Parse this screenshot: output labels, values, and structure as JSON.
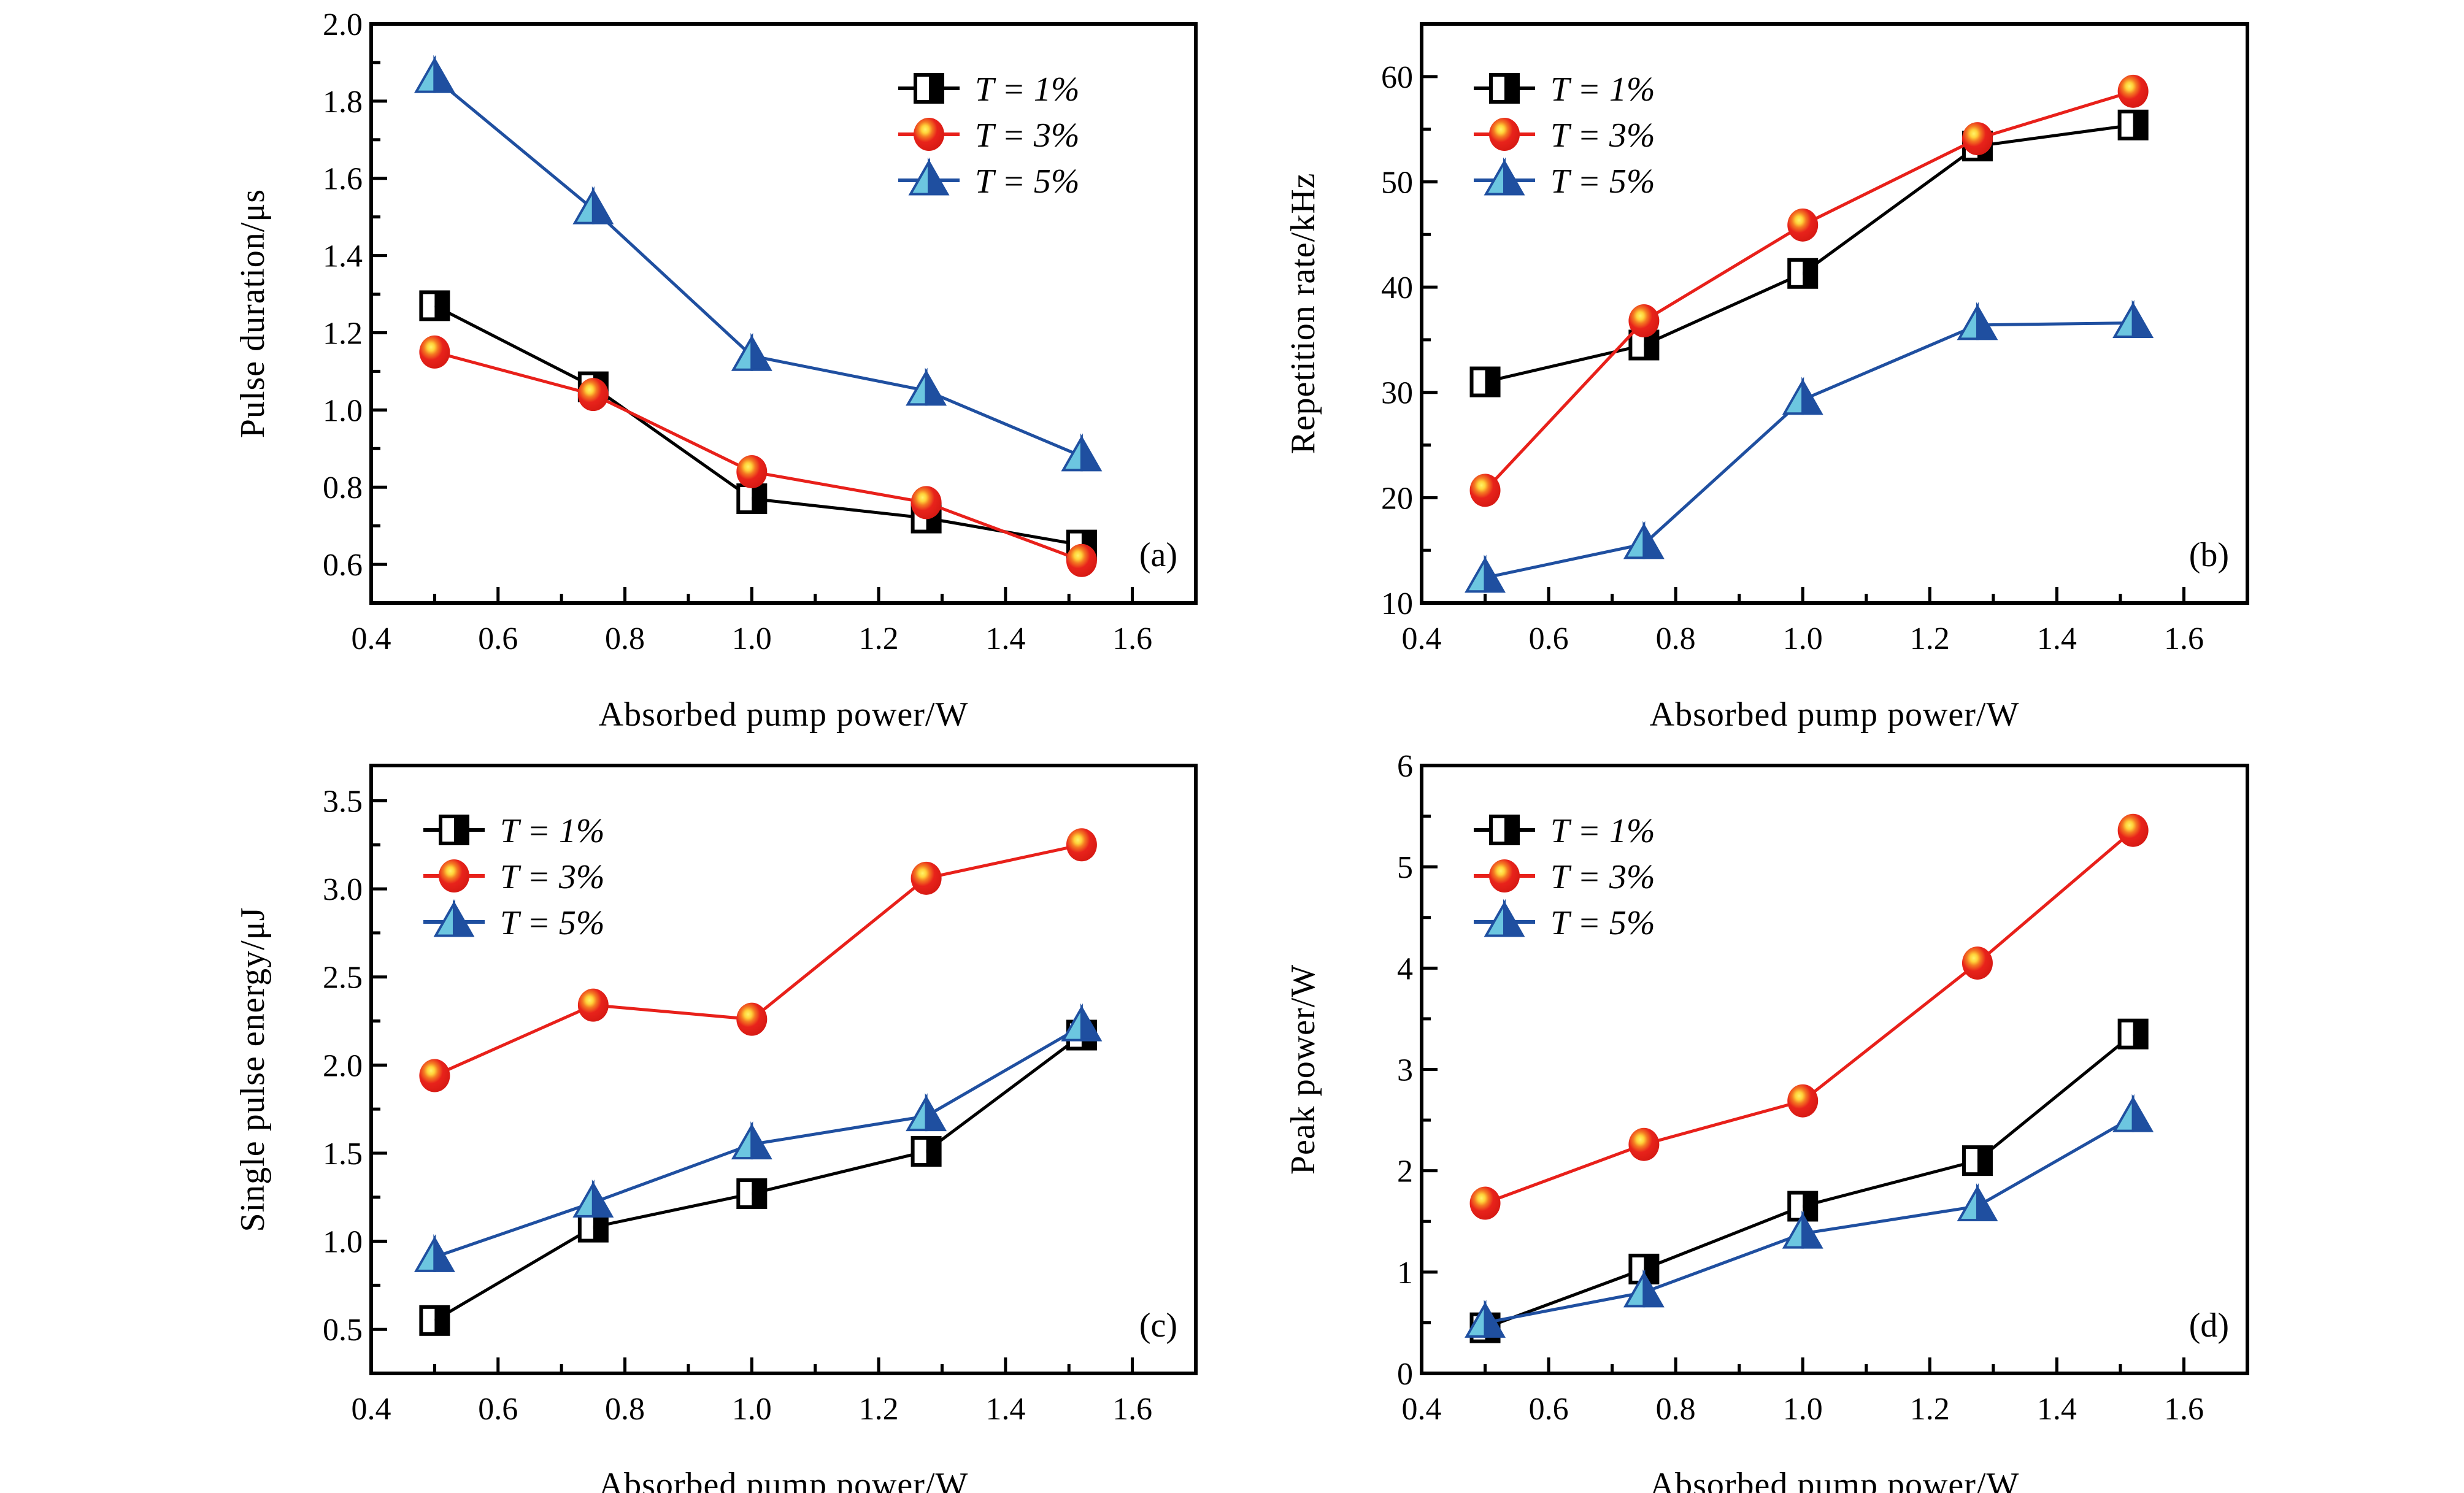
{
  "colors": {
    "T1_line": "#000000",
    "T3_line": "#e8201a",
    "T3_marker": "#e8231b",
    "T3_highlight": "#ffe94a",
    "T5_line": "#1f4fa0",
    "T5_light": "#6cc6e0",
    "T5_dark": "#1f4fa0"
  },
  "chart_data": [
    {
      "type": "line",
      "panel_label": "(a)",
      "xlabel": "Absorbed pump power/W",
      "ylabel": "Pulse duration/μs",
      "xlim": [
        0.4,
        1.7
      ],
      "ylim": [
        0.5,
        2.0
      ],
      "xticks": [
        "0.4",
        "0.6",
        "0.8",
        "1.0",
        "1.2",
        "1.4",
        "1.6"
      ],
      "yticks": [
        "0.6",
        "0.8",
        "1.0",
        "1.2",
        "1.4",
        "1.6",
        "1.8",
        "2.0"
      ],
      "legend_position": "top-right",
      "x": [
        0.5,
        0.75,
        1.0,
        1.275,
        1.52
      ],
      "series": [
        {
          "name": "T = 1%",
          "marker": "half-filled-square",
          "values": [
            1.27,
            1.06,
            0.77,
            0.72,
            0.65
          ]
        },
        {
          "name": "T = 3%",
          "marker": "sphere",
          "values": [
            1.15,
            1.04,
            0.84,
            0.76,
            0.61
          ]
        },
        {
          "name": "T = 5%",
          "marker": "half-filled-triangle",
          "values": [
            1.86,
            1.52,
            1.14,
            1.05,
            0.88
          ]
        }
      ]
    },
    {
      "type": "line",
      "panel_label": "(b)",
      "xlabel": "Absorbed pump power/W",
      "ylabel": "Repetition rate/kHz",
      "xlim": [
        0.4,
        1.7
      ],
      "ylim": [
        10,
        65
      ],
      "xticks": [
        "0.4",
        "0.6",
        "0.8",
        "1.0",
        "1.2",
        "1.4",
        "1.6"
      ],
      "yticks": [
        "10",
        "20",
        "30",
        "40",
        "50",
        "60"
      ],
      "legend_position": "top-left",
      "x": [
        0.5,
        0.75,
        1.0,
        1.275,
        1.52
      ],
      "series": [
        {
          "name": "T = 1%",
          "marker": "half-filled-square",
          "values": [
            31.0,
            34.5,
            41.3,
            53.4,
            55.4
          ]
        },
        {
          "name": "T = 3%",
          "marker": "sphere",
          "values": [
            20.7,
            36.8,
            45.9,
            54.1,
            58.6
          ]
        },
        {
          "name": "T = 5%",
          "marker": "half-filled-triangle",
          "values": [
            12.4,
            15.6,
            29.3,
            36.4,
            36.6
          ]
        }
      ]
    },
    {
      "type": "line",
      "panel_label": "(c)",
      "xlabel": "Absorbed pump power/W",
      "ylabel": "Single pulse energy/μJ",
      "xlim": [
        0.4,
        1.7
      ],
      "ylim": [
        0.25,
        3.7
      ],
      "xticks": [
        "0.4",
        "0.6",
        "0.8",
        "1.0",
        "1.2",
        "1.4",
        "1.6"
      ],
      "yticks": [
        "0.5",
        "1.0",
        "1.5",
        "2.0",
        "2.5",
        "3.0",
        "3.5"
      ],
      "legend_position": "top-left",
      "x": [
        0.5,
        0.75,
        1.0,
        1.275,
        1.52
      ],
      "series": [
        {
          "name": "T = 1%",
          "marker": "half-filled-square",
          "values": [
            0.55,
            1.08,
            1.27,
            1.51,
            2.17
          ]
        },
        {
          "name": "T = 3%",
          "marker": "sphere",
          "values": [
            1.94,
            2.34,
            2.26,
            3.06,
            3.25
          ]
        },
        {
          "name": "T = 5%",
          "marker": "half-filled-triangle",
          "values": [
            0.91,
            1.22,
            1.55,
            1.71,
            2.22
          ]
        }
      ]
    },
    {
      "type": "line",
      "panel_label": "(d)",
      "xlabel": "Absorbed pump power/W",
      "ylabel": "Peak power/W",
      "xlim": [
        0.4,
        1.7
      ],
      "ylim": [
        0,
        6
      ],
      "xticks": [
        "0.4",
        "0.6",
        "0.8",
        "1.0",
        "1.2",
        "1.4",
        "1.6"
      ],
      "yticks": [
        "0",
        "1",
        "2",
        "3",
        "4",
        "5",
        "6"
      ],
      "legend_position": "top-left",
      "x": [
        0.5,
        0.75,
        1.0,
        1.275,
        1.52
      ],
      "series": [
        {
          "name": "T = 1%",
          "marker": "half-filled-square",
          "values": [
            0.45,
            1.03,
            1.65,
            2.1,
            3.35
          ]
        },
        {
          "name": "T = 3%",
          "marker": "sphere",
          "values": [
            1.68,
            2.26,
            2.69,
            4.05,
            5.36
          ]
        },
        {
          "name": "T = 5%",
          "marker": "half-filled-triangle",
          "values": [
            0.5,
            0.8,
            1.38,
            1.65,
            2.53
          ]
        }
      ]
    }
  ]
}
